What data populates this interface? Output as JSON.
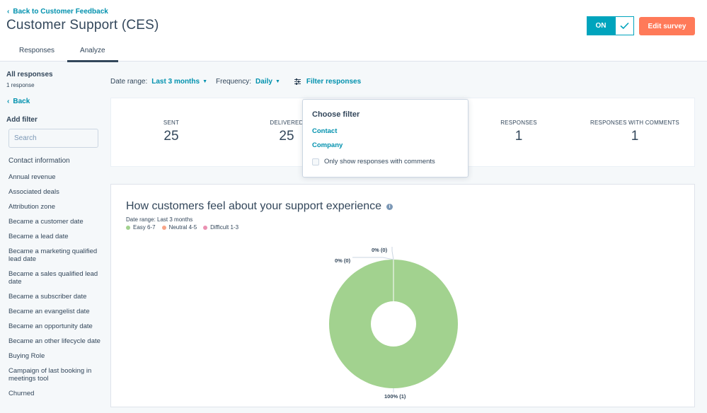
{
  "header": {
    "back_label": "Back to Customer Feedback",
    "title": "Customer Support (CES)",
    "tabs": [
      {
        "label": "Responses",
        "active": false
      },
      {
        "label": "Analyze",
        "active": true
      }
    ],
    "toggle_label": "ON",
    "edit_label": "Edit survey"
  },
  "colors": {
    "accent": "#00a4bd",
    "link": "#0091ae",
    "edit_button": "#ff7a59",
    "text": "#33475b"
  },
  "sidebar": {
    "title": "All responses",
    "count": "1 response",
    "back_label": "Back",
    "add_filter_label": "Add filter",
    "search_placeholder": "Search",
    "section_title": "Contact information",
    "items": [
      "Annual revenue",
      "Associated deals",
      "Attribution zone",
      "Became a customer date",
      "Became a lead date",
      "Became a marketing qualified lead date",
      "Became a sales qualified lead date",
      "Became a subscriber date",
      "Became an evangelist date",
      "Became an opportunity date",
      "Became an other lifecycle date",
      "Buying Role",
      "Campaign of last booking in meetings tool",
      "Churned"
    ]
  },
  "filters": {
    "date_range_label": "Date range:",
    "date_range_value": "Last 3 months",
    "frequency_label": "Frequency:",
    "frequency_value": "Daily",
    "filter_responses_label": "Filter responses"
  },
  "stats": {
    "sent_label": "SENT",
    "sent_value": "25",
    "delivered_label": "DELIVERED",
    "delivered_value": "25",
    "responses_label": "RESPONSES",
    "responses_value": "1",
    "comments_label": "RESPONSES WITH COMMENTS",
    "comments_value": "1"
  },
  "dropdown": {
    "title": "Choose filter",
    "option_contact": "Contact",
    "option_company": "Company",
    "checkbox_label": "Only show responses with comments"
  },
  "chart": {
    "title": "How customers feel about your support experience",
    "subtitle": "Date range: Last 3 months"
  },
  "chart_data": {
    "type": "pie",
    "donut": true,
    "title": "How customers feel about your support experience",
    "subtitle": "Date range: Last 3 months",
    "legend_placement": "top-left",
    "series": [
      {
        "name": "Easy 6-7",
        "value": 1,
        "percent": 100,
        "label": "100% (1)",
        "color": "#a2d28f"
      },
      {
        "name": "Neutral 4-5",
        "value": 0,
        "percent": 0,
        "label": "0% (0)",
        "color": "#f8a487"
      },
      {
        "name": "Difficult 1-3",
        "value": 0,
        "percent": 0,
        "label": "0% (0)",
        "color": "#ea90b1"
      }
    ]
  }
}
